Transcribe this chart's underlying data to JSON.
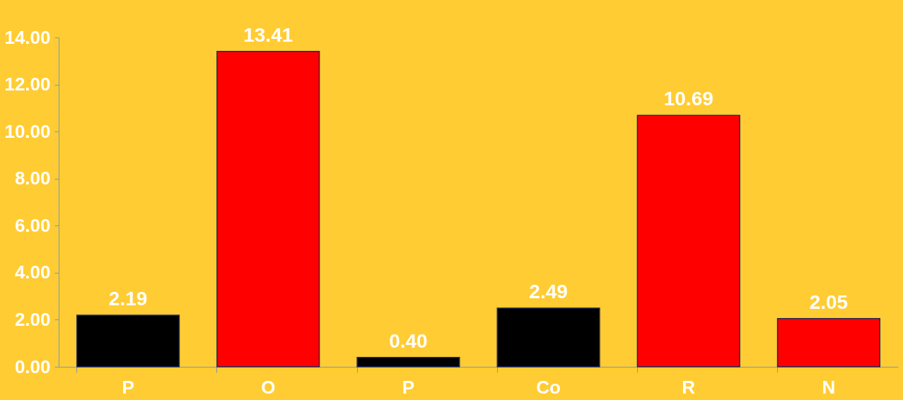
{
  "chart_data": {
    "type": "bar",
    "categories": [
      "P",
      "O",
      "P",
      "Co",
      "R",
      "N"
    ],
    "values": [
      2.19,
      13.41,
      0.4,
      2.49,
      10.69,
      2.05
    ],
    "colors": [
      "#000000",
      "#ff0000",
      "#000000",
      "#000000",
      "#ff0000",
      "#ff0000"
    ],
    "value_labels": [
      "2.19",
      "13.41",
      "0.40",
      "2.49",
      "10.69",
      "2.05"
    ],
    "ylim": [
      0,
      14
    ],
    "yticks": [
      {
        "value": 0,
        "label": "0.00"
      },
      {
        "value": 2,
        "label": "2.00"
      },
      {
        "value": 4,
        "label": "4.00"
      },
      {
        "value": 6,
        "label": "6.00"
      },
      {
        "value": 8,
        "label": "8.00"
      },
      {
        "value": 10,
        "label": "10.00"
      },
      {
        "value": 12,
        "label": "12.00"
      },
      {
        "value": 14,
        "label": "14.00"
      }
    ],
    "grid": false
  }
}
